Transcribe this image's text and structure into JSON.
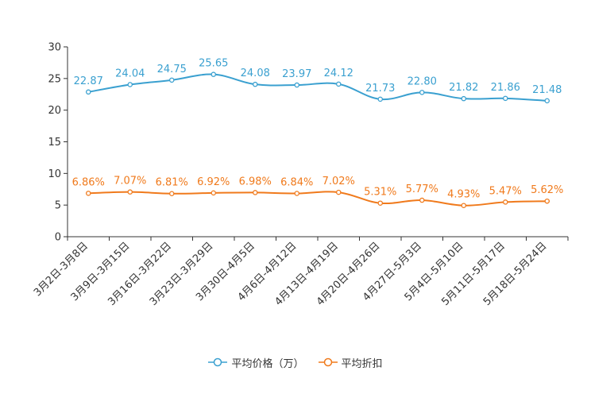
{
  "chart_data": {
    "type": "line",
    "title": "",
    "xlabel": "",
    "ylabel": "",
    "ylim": [
      0,
      30
    ],
    "yticks": [
      0,
      5,
      10,
      15,
      20,
      25,
      30
    ],
    "grid": false,
    "legend_position": "bottom-center",
    "categories": [
      "3月2日-3月8日",
      "3月9日-3月15日",
      "3月16日-3月22日",
      "3月23日-3月29日",
      "3月30日-4月5日",
      "4月6日-4月12日",
      "4月13日-4月19日",
      "4月20日-4月26日",
      "4月27日-5月3日",
      "5月4日-5月10日",
      "5月11日-5月17日",
      "5月18日-5月24日"
    ],
    "series": [
      {
        "name": "平均价格（万）",
        "color": "#3aa0d0",
        "values": [
          22.87,
          24.04,
          24.75,
          25.65,
          24.08,
          23.97,
          24.12,
          21.73,
          22.8,
          21.82,
          21.86,
          21.48
        ],
        "labels": [
          "22.87",
          "24.04",
          "24.75",
          "25.65",
          "24.08",
          "23.97",
          "24.12",
          "21.73",
          "22.80",
          "21.82",
          "21.86",
          "21.48"
        ]
      },
      {
        "name": "平均折扣",
        "color": "#f07a1c",
        "values": [
          6.86,
          7.07,
          6.81,
          6.92,
          6.98,
          6.84,
          7.02,
          5.31,
          5.77,
          4.93,
          5.47,
          5.62
        ],
        "labels": [
          "6.86%",
          "7.07%",
          "6.81%",
          "6.92%",
          "6.98%",
          "6.84%",
          "7.02%",
          "5.31%",
          "5.77%",
          "4.93%",
          "5.47%",
          "5.62%"
        ]
      }
    ]
  }
}
